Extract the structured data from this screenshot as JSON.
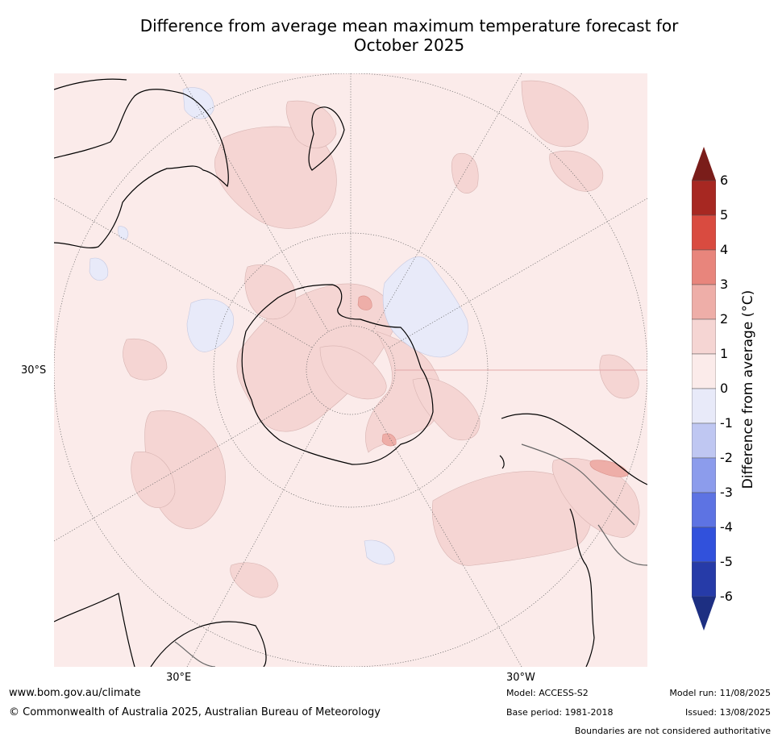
{
  "title": {
    "line1": "Difference from average mean maximum temperature forecast for",
    "line2": "October 2025"
  },
  "map": {
    "projection": "South polar stereographic",
    "latitude_label": "30°S",
    "longitude_labels": {
      "left": "30°E",
      "right": "30°W"
    }
  },
  "colorbar": {
    "label": "Difference from average (°C)",
    "ticks": [
      "6",
      "5",
      "4",
      "3",
      "2",
      "1",
      "0",
      "-1",
      "-2",
      "-3",
      "-4",
      "-5",
      "-6"
    ],
    "bins": [
      {
        "range": "above 6",
        "color": "#7a1d1a"
      },
      {
        "range": "5 to 6",
        "color": "#a72822"
      },
      {
        "range": "4 to 5",
        "color": "#d94b40"
      },
      {
        "range": "3 to 4",
        "color": "#e8857c"
      },
      {
        "range": "2 to 3",
        "color": "#eeaea8"
      },
      {
        "range": "1 to 2",
        "color": "#f5d5d3"
      },
      {
        "range": "0 to 1",
        "color": "#fbebea"
      },
      {
        "range": "-1 to 0",
        "color": "#e8eaf9"
      },
      {
        "range": "-2 to -1",
        "color": "#bfc7f2"
      },
      {
        "range": "-3 to -2",
        "color": "#8c9cec"
      },
      {
        "range": "-4 to -3",
        "color": "#5d73e3"
      },
      {
        "range": "-5 to -4",
        "color": "#3151dc"
      },
      {
        "range": "-6 to -5",
        "color": "#263ba8"
      },
      {
        "range": "below -6",
        "color": "#1d2f82"
      }
    ]
  },
  "footer": {
    "website": "www.bom.gov.au/climate",
    "copyright": "© Commonwealth of Australia 2025, Australian Bureau of Meteorology",
    "model": "Model: ACCESS-S2",
    "base_period": "Base period: 1981-2018",
    "model_run": "Model run: 11/08/2025",
    "issued": "Issued: 13/08/2025",
    "disclaimer": "Boundaries are not considered authoritative"
  }
}
